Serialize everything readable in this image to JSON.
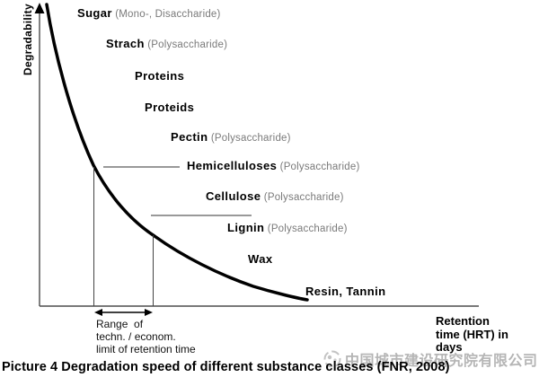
{
  "colors": {
    "curve": "#000000",
    "y_axis": "#808080",
    "x_axis": "#4d4d4d",
    "pointer_line": "#999999",
    "marker_line": "#444444",
    "detail_text": "#7a7a7a",
    "watermark": "#b5b5b5"
  },
  "chart_data": {
    "type": "line",
    "title": "Degradation speed of different substance classes",
    "xlabel": "Retention time (HRT) in days",
    "ylabel": "Degradability",
    "curve_shape": "monotonic exponential decay from high degradability at short retention time to low degradability at long retention time",
    "legend_position": "none",
    "grid": false,
    "substances_ordered_high_to_low_degradability": [
      {
        "name": "Sugar",
        "detail": "(Mono-, Disaccharide)"
      },
      {
        "name": "Strach",
        "detail": "(Polysaccharide)"
      },
      {
        "name": "Proteins",
        "detail": ""
      },
      {
        "name": "Proteids",
        "detail": ""
      },
      {
        "name": "Pectin",
        "detail": "(Polysaccharide)"
      },
      {
        "name": "Hemicelluloses",
        "detail": "(Polysaccharide)"
      },
      {
        "name": "Cellulose",
        "detail": "(Polysaccharide)"
      },
      {
        "name": "Lignin",
        "detail": "(Polysaccharide)"
      },
      {
        "name": "Wax",
        "detail": ""
      },
      {
        "name": "Resin, Tannin",
        "detail": ""
      }
    ],
    "marked_range": "Two vertical marker lines drop from the curve (at the Hemicelluloses level and the Cellulose level) to the x-axis, delimiting the range of the technical / economical limit of retention time"
  },
  "y_axis_label": "Degradability",
  "x_axis_label_lines": [
    "Retention",
    "time (HRT) in",
    "days"
  ],
  "range_annotation_lines": [
    "Range  of",
    "techn. / econom.",
    "limit of retention time"
  ],
  "caption": "Picture 4 Degradation speed of different substance classes (FNR, 2008)",
  "watermark_text": "中国城市建设研究院有限公司"
}
